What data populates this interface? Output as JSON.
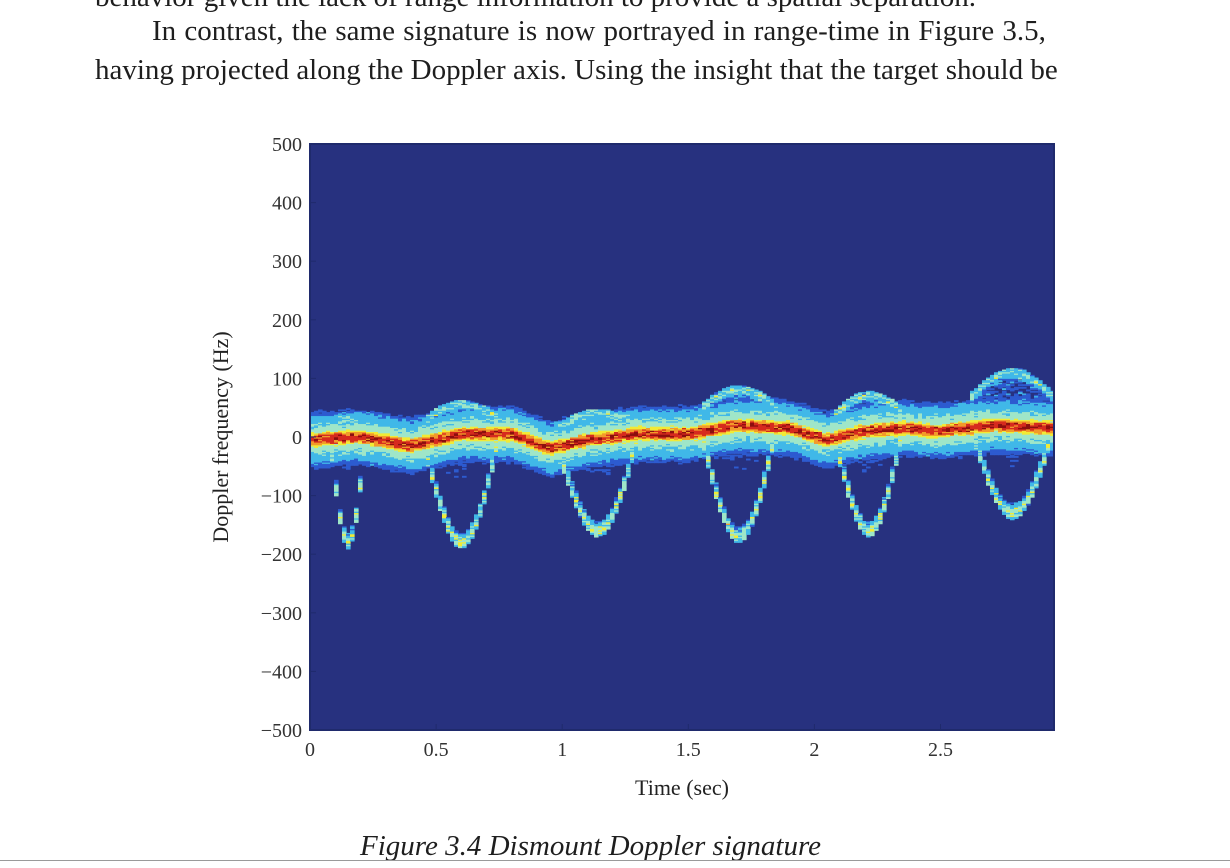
{
  "paper": {
    "cut_line": "behavior given the lack of range information to provide a spatial separation.",
    "paragraph_lines": [
      "In contrast, the same signature is now portrayed in range-time in Figure 3.5,",
      "having projected along the Doppler axis. Using the insight that the target should be"
    ],
    "caption": "Figure 3.4    Dismount Doppler signature"
  },
  "chart_data": {
    "type": "heatmap",
    "title": "",
    "xlabel": "Time (sec)",
    "ylabel": "Doppler frequency (Hz)",
    "xlim": [
      0,
      2.95
    ],
    "ylim": [
      -500,
      500
    ],
    "x_ticks": [
      0,
      0.5,
      1,
      1.5,
      2,
      2.5
    ],
    "x_tick_labels": [
      "0",
      "0.5",
      "1",
      "1.5",
      "2",
      "2.5"
    ],
    "y_ticks": [
      500,
      400,
      300,
      200,
      100,
      0,
      -100,
      -200,
      -300,
      -400,
      -500
    ],
    "y_tick_labels": [
      "500",
      "400",
      "300",
      "200",
      "100",
      "0",
      "−100",
      "−200",
      "−300",
      "−400",
      "−500"
    ],
    "background_color": "#27317f",
    "colormap": [
      "#27317f",
      "#2d5bd0",
      "#40b8e8",
      "#9fe6c8",
      "#f2ea35",
      "#f29a2a",
      "#d62a1e",
      "#8c0f0f"
    ],
    "grid": false,
    "torso_track": [
      [
        0.0,
        -5
      ],
      [
        0.2,
        0
      ],
      [
        0.4,
        -15
      ],
      [
        0.6,
        5
      ],
      [
        0.8,
        5
      ],
      [
        0.95,
        -20
      ],
      [
        1.1,
        -5
      ],
      [
        1.3,
        5
      ],
      [
        1.5,
        5
      ],
      [
        1.7,
        20
      ],
      [
        1.9,
        15
      ],
      [
        2.05,
        -5
      ],
      [
        2.2,
        10
      ],
      [
        2.35,
        15
      ],
      [
        2.5,
        10
      ],
      [
        2.7,
        20
      ],
      [
        2.95,
        15
      ]
    ],
    "limb_excursions": [
      {
        "t_start": 0.08,
        "t_end": 0.22,
        "min_hz": -180,
        "max_hz": 30
      },
      {
        "t_start": 0.45,
        "t_end": 0.75,
        "min_hz": -180,
        "max_hz": 55
      },
      {
        "t_start": 0.98,
        "t_end": 1.3,
        "min_hz": -160,
        "max_hz": 40
      },
      {
        "t_start": 1.55,
        "t_end": 1.85,
        "min_hz": -170,
        "max_hz": 80
      },
      {
        "t_start": 2.08,
        "t_end": 2.35,
        "min_hz": -160,
        "max_hz": 70
      },
      {
        "t_start": 2.62,
        "t_end": 2.95,
        "min_hz": -130,
        "max_hz": 110
      }
    ]
  }
}
